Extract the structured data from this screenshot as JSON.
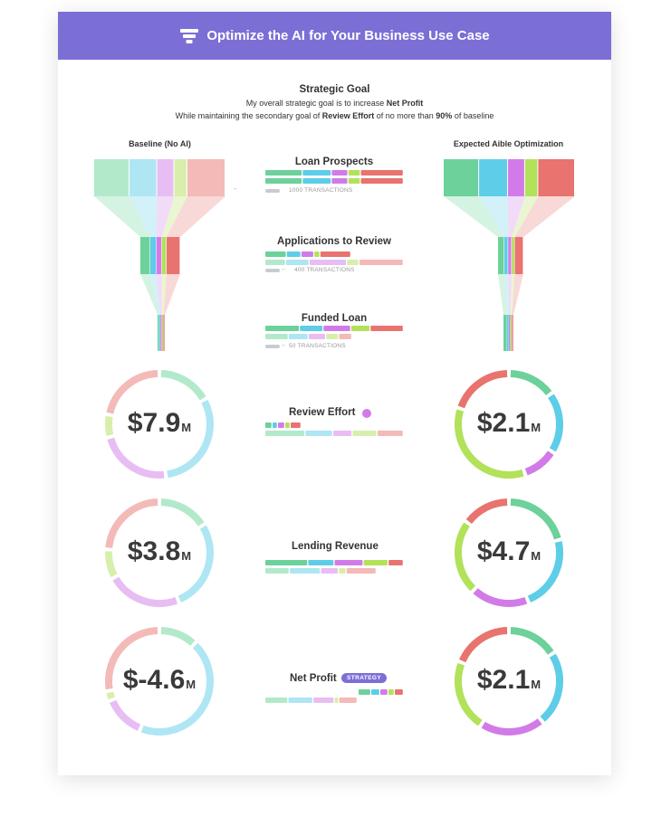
{
  "header": {
    "title": "Optimize the AI for Your Business Use Case",
    "icon": "funnel-icon"
  },
  "goal": {
    "heading": "Strategic Goal",
    "line1_prefix": "My overall strategic goal is to increase ",
    "line1_bold": "Net Profit",
    "line2_prefix": "While maintaining the secondary goal of ",
    "line2_bold1": "Review Effort",
    "line2_mid": " of no more than ",
    "line2_bold2": "90%",
    "line2_suffix": " of baseline"
  },
  "columns": {
    "baseline": "Baseline (No AI)",
    "optimized": "Expected Aible Optimization"
  },
  "stages": [
    {
      "title": "Loan Prospects",
      "transactions": "1000 TRANSACTIONS",
      "arrow": "←"
    },
    {
      "title": "Applications to Review",
      "transactions": "400 TRANSACTIONS",
      "arrow": "←"
    },
    {
      "title": "Funded Loan",
      "transactions": "50 TRANSACTIONS",
      "arrow": "←"
    }
  ],
  "metrics": [
    {
      "title": "Review Effort",
      "baseline": "$7.9",
      "optimized": "$2.1",
      "unit": "M",
      "badge": ""
    },
    {
      "title": "Lending Revenue",
      "baseline": "$3.8",
      "optimized": "$4.7",
      "unit": "M",
      "badge": ""
    },
    {
      "title": "Net Profit",
      "baseline": "$-4.6",
      "optimized": "$2.1",
      "unit": "M",
      "badge": "STRATEGY"
    }
  ],
  "colors": {
    "header": "#7b6fd6",
    "seg": [
      "#6cd19a",
      "#5dcde8",
      "#d27be8",
      "#b2e15a",
      "#e8736f"
    ],
    "seg_light": [
      "#b3e9cb",
      "#aee6f3",
      "#e8bdf3",
      "#d8efac",
      "#f3bab7"
    ],
    "gray_bar": "#c8ccd2"
  },
  "donut_shares": {
    "baseline": [
      [
        0.17,
        0.31,
        0.23,
        0.07,
        0.22
      ],
      [
        0.16,
        0.28,
        0.23,
        0.09,
        0.24
      ],
      [
        0.12,
        0.44,
        0.13,
        0.03,
        0.28
      ]
    ],
    "optimized": [
      [
        0.15,
        0.19,
        0.11,
        0.35,
        0.2
      ],
      [
        0.21,
        0.23,
        0.18,
        0.23,
        0.15
      ],
      [
        0.16,
        0.23,
        0.2,
        0.22,
        0.19
      ]
    ]
  }
}
